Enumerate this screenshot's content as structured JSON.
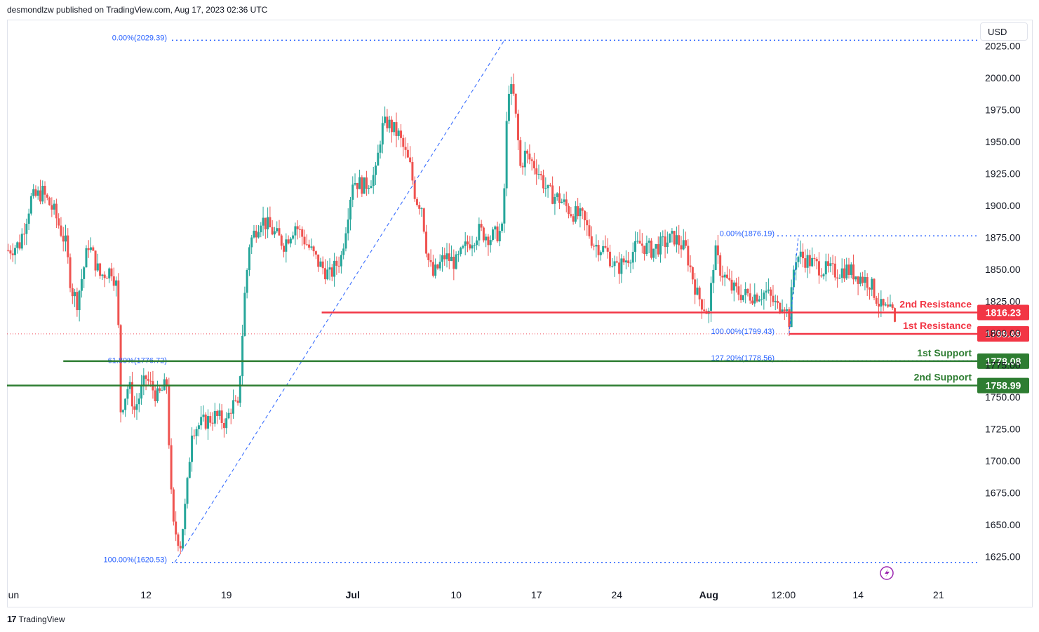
{
  "header": {
    "published": "desmondlzw published on TradingView.com, Aug 17, 2023 02:36 UTC"
  },
  "currency": "USD",
  "footer": {
    "brand": "TradingView"
  },
  "colors": {
    "up": "#26a69a",
    "down": "#ef5350",
    "support": "#2e7d32",
    "resistance": "#f23645",
    "fib": "#2962ff"
  },
  "chart_data": {
    "type": "candlestick",
    "ylim": [
      1605,
      2045
    ],
    "y_ticks": [
      "2025.00",
      "2000.00",
      "1975.00",
      "1950.00",
      "1925.00",
      "1900.00",
      "1875.00",
      "1850.00",
      "1825.00",
      "1800.00",
      "1775.00",
      "1750.00",
      "1725.00",
      "1700.00",
      "1675.00",
      "1650.00",
      "1625.00"
    ],
    "y_tick_values": [
      2025,
      2000,
      1975,
      1950,
      1925,
      1900,
      1875,
      1850,
      1825,
      1800,
      1775,
      1750,
      1725,
      1700,
      1675,
      1650,
      1625
    ],
    "x_ticks": [
      {
        "label": "un",
        "day": 0
      },
      {
        "label": "12",
        "day": 12
      },
      {
        "label": "19",
        "day": 19
      },
      {
        "label": "Jul",
        "day": 30
      },
      {
        "label": "10",
        "day": 39
      },
      {
        "label": "17",
        "day": 46
      },
      {
        "label": "24",
        "day": 53
      },
      {
        "label": "Aug",
        "day": 61
      },
      {
        "label": "12:00",
        "day": 67.5
      },
      {
        "label": "14",
        "day": 74
      },
      {
        "label": "21",
        "day": 81
      }
    ],
    "x_range_days": [
      -0.1,
      84.5
    ],
    "close_path": [
      [
        0,
        1865
      ],
      [
        1,
        1870
      ],
      [
        2,
        1905
      ],
      [
        3,
        1910
      ],
      [
        4,
        1895
      ],
      [
        5,
        1870
      ],
      [
        5.5,
        1835
      ],
      [
        6,
        1825
      ],
      [
        7,
        1870
      ],
      [
        8,
        1845
      ],
      [
        9,
        1850
      ],
      [
        9.5,
        1835
      ],
      [
        9.8,
        1740
      ],
      [
        10.5,
        1760
      ],
      [
        11,
        1740
      ],
      [
        12,
        1765
      ],
      [
        13,
        1750
      ],
      [
        13.8,
        1760
      ],
      [
        14.3,
        1650
      ],
      [
        15,
        1635
      ],
      [
        15.5,
        1670
      ],
      [
        16,
        1725
      ],
      [
        17,
        1730
      ],
      [
        18,
        1735
      ],
      [
        19,
        1730
      ],
      [
        19.5,
        1745
      ],
      [
        20,
        1740
      ],
      [
        20.6,
        1830
      ],
      [
        21,
        1870
      ],
      [
        22,
        1890
      ],
      [
        23,
        1880
      ],
      [
        24,
        1870
      ],
      [
        25,
        1885
      ],
      [
        26,
        1870
      ],
      [
        27,
        1855
      ],
      [
        28,
        1845
      ],
      [
        29,
        1860
      ],
      [
        30,
        1920
      ],
      [
        31,
        1915
      ],
      [
        32,
        1925
      ],
      [
        32.5,
        1960
      ],
      [
        33,
        1965
      ],
      [
        34,
        1955
      ],
      [
        35,
        1930
      ],
      [
        35.5,
        1905
      ],
      [
        36,
        1900
      ],
      [
        36.5,
        1860
      ],
      [
        37,
        1845
      ],
      [
        38,
        1860
      ],
      [
        39,
        1855
      ],
      [
        40,
        1870
      ],
      [
        41,
        1880
      ],
      [
        42,
        1875
      ],
      [
        43,
        1880
      ],
      [
        43.3,
        1930
      ],
      [
        43.5,
        1995
      ],
      [
        44,
        1985
      ],
      [
        44.3,
        1960
      ],
      [
        44.6,
        1930
      ],
      [
        45,
        1940
      ],
      [
        46,
        1930
      ],
      [
        47,
        1910
      ],
      [
        48,
        1905
      ],
      [
        49,
        1895
      ],
      [
        50,
        1890
      ],
      [
        51,
        1870
      ],
      [
        52,
        1865
      ],
      [
        53,
        1850
      ],
      [
        54,
        1860
      ],
      [
        55,
        1870
      ],
      [
        56,
        1865
      ],
      [
        57,
        1870
      ],
      [
        58,
        1875
      ],
      [
        59,
        1865
      ],
      [
        60,
        1830
      ],
      [
        61,
        1815
      ],
      [
        61.5,
        1865
      ],
      [
        62,
        1850
      ],
      [
        63,
        1835
      ],
      [
        64,
        1830
      ],
      [
        65,
        1830
      ],
      [
        66,
        1832
      ],
      [
        67,
        1820
      ],
      [
        67.5,
        1826
      ],
      [
        68,
        1810
      ],
      [
        68.5,
        1860
      ],
      [
        69,
        1860
      ],
      [
        70,
        1855
      ],
      [
        71,
        1850
      ],
      [
        72,
        1848
      ],
      [
        73,
        1850
      ],
      [
        74,
        1845
      ],
      [
        75,
        1840
      ],
      [
        76,
        1820
      ],
      [
        77,
        1815
      ],
      [
        77.4,
        1795
      ]
    ],
    "levels": [
      {
        "name": "2nd Resistance",
        "value": 1816.23,
        "label": "1816.23",
        "kind": "resistance",
        "start_day": 27.3
      },
      {
        "name": "1st Resistance",
        "value": 1799.49,
        "label": "1799.49",
        "kind": "resistance",
        "start_day": 68.0
      },
      {
        "name": "1st Support",
        "value": 1778.08,
        "label": "1778.08",
        "kind": "support",
        "start_day": 4.8
      },
      {
        "name": "2nd Support",
        "value": 1758.99,
        "label": "1758.99",
        "kind": "support",
        "start_day": -0.1
      }
    ],
    "fib_labels": [
      {
        "text": "0.00%(2029.39)",
        "value": 2029.39,
        "day": 14.5
      },
      {
        "text": "100.00%(1620.53)",
        "value": 1620.53,
        "day": 14.5
      },
      {
        "text": "61.80%(1776.72)",
        "value": 1776.72,
        "day": 14.5
      },
      {
        "text": "0.00%(1876.19)",
        "value": 1876.19,
        "day": 68.0
      },
      {
        "text": "100.00%(1799.43)",
        "value": 1799.43,
        "day": 68.0
      },
      {
        "text": "127.20%(1778.56)",
        "value": 1778.56,
        "day": 68.0
      }
    ]
  }
}
